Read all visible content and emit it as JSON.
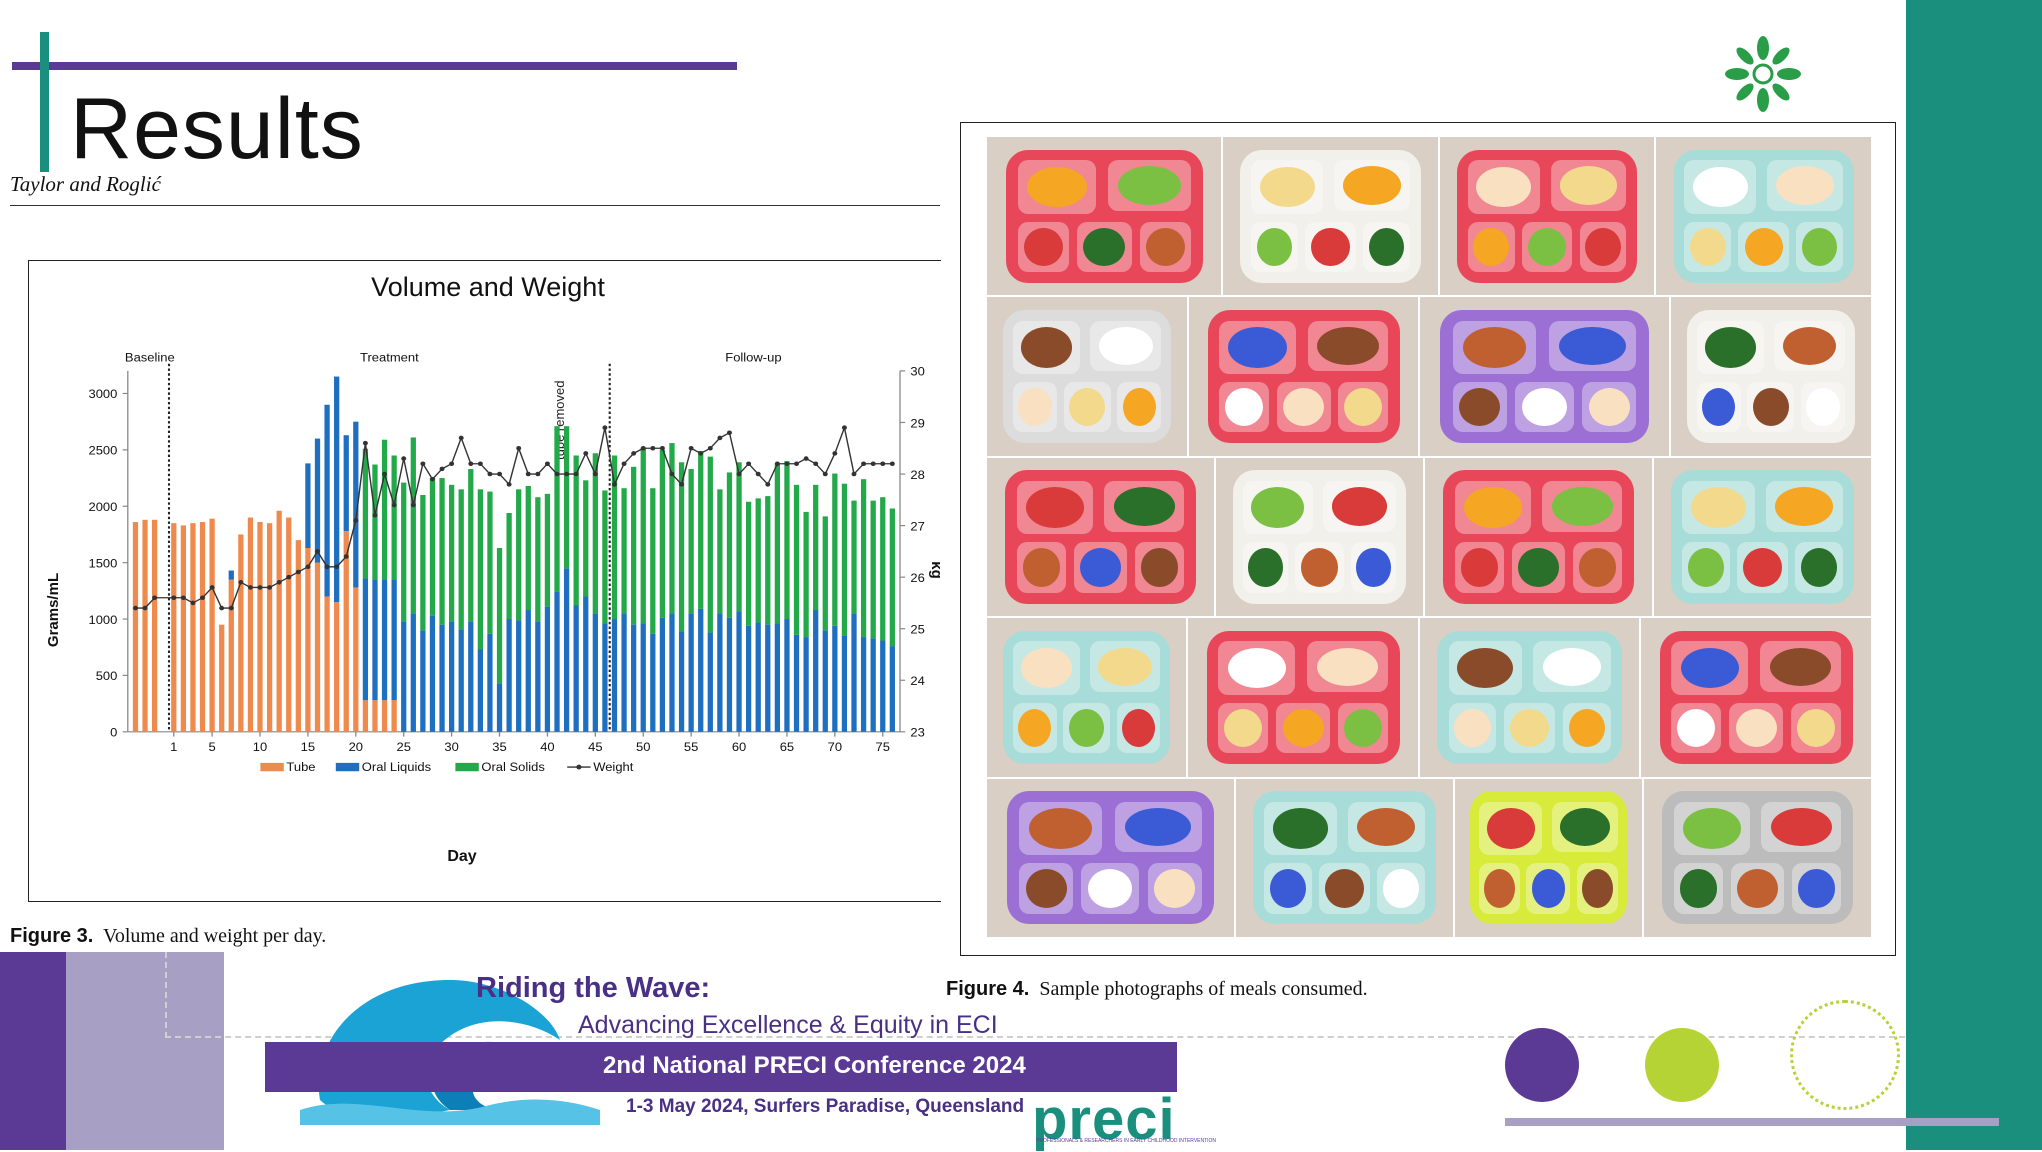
{
  "slide": {
    "title": "Results",
    "authors": "Taylor and Roglić"
  },
  "figure3": {
    "caption_label": "Figure 3.",
    "caption_text": "Volume and weight per day."
  },
  "figure4": {
    "caption_label": "Figure 4.",
    "caption_text": "Sample photographs of meals consumed."
  },
  "conference": {
    "title_line1": "Riding the Wave:",
    "title_line2": "Advancing Excellence & Equity in ECI",
    "name": "2nd National PRECI Conference 2024",
    "date": "1-3 May 2024, Surfers Paradise, Queensland",
    "logo": "preci",
    "logo_sub": "PROFESSIONALS & RESEARCHERS IN EARLY CHILDHOOD INTERVENTION"
  },
  "icons": [
    "flower-logo-icon",
    "wave-icon"
  ],
  "colors": {
    "purple": "#5b3a96",
    "teal": "#1a8f7d",
    "lime": "#b5d334",
    "lavender": "#a7a0c4",
    "tube": "#ee8a4e",
    "oral_liquids": "#1f6fc1",
    "oral_solids": "#23a84a",
    "weight": "#333333"
  },
  "chart_data": {
    "type": "bar",
    "title": "Volume and Weight",
    "xlabel": "Day",
    "ylabel": "Grams/mL",
    "y2label": "kg",
    "ylim": [
      0,
      3200
    ],
    "y2lim": [
      23,
      30
    ],
    "yticks": [
      0,
      500,
      1000,
      1500,
      2000,
      2500,
      3000
    ],
    "y2ticks": [
      23,
      24,
      25,
      26,
      27,
      28,
      29,
      30
    ],
    "xticks": [
      1,
      5,
      10,
      15,
      20,
      25,
      30,
      35,
      40,
      45,
      50,
      55,
      60,
      65,
      70,
      75
    ],
    "phases": [
      {
        "label": "Baseline",
        "start": -3,
        "end": 0
      },
      {
        "label": "Treatment",
        "start": 1,
        "end": 46
      },
      {
        "label": "Follow-up",
        "start": 47,
        "end": 76
      }
    ],
    "annotation": "tube removed",
    "legend": [
      "Tube",
      "Oral Liquids",
      "Oral Solids",
      "Weight"
    ],
    "legend_position": "bottom",
    "days": [
      -3,
      -2,
      -1,
      1,
      2,
      3,
      4,
      5,
      6,
      7,
      8,
      9,
      10,
      11,
      12,
      13,
      14,
      15,
      16,
      17,
      18,
      19,
      20,
      21,
      22,
      23,
      24,
      25,
      26,
      27,
      28,
      29,
      30,
      31,
      32,
      33,
      34,
      35,
      36,
      37,
      38,
      39,
      40,
      41,
      42,
      43,
      44,
      45,
      46,
      47,
      48,
      49,
      50,
      51,
      52,
      53,
      54,
      55,
      56,
      57,
      58,
      59,
      60,
      61,
      62,
      63,
      64,
      65,
      66,
      67,
      68,
      69,
      70,
      71,
      72,
      73,
      74,
      75,
      76
    ],
    "series": [
      {
        "name": "Tube",
        "values": [
          1860,
          1880,
          1880,
          1850,
          1830,
          1850,
          1860,
          1890,
          950,
          1350,
          1750,
          1900,
          1860,
          1850,
          1960,
          1900,
          1700,
          1630,
          1500,
          1200,
          1150,
          1780,
          1280,
          280,
          280,
          280,
          280,
          0,
          0,
          0,
          0,
          0,
          0,
          0,
          0,
          0,
          0,
          0,
          0,
          0,
          0,
          0,
          0,
          0,
          0,
          0,
          0,
          0,
          0,
          0,
          0,
          0,
          0,
          0,
          0,
          0,
          0,
          0,
          0,
          0,
          0,
          0,
          0,
          0,
          0,
          0,
          0,
          0,
          0,
          0,
          0,
          0,
          0,
          0,
          0,
          0,
          0,
          0,
          0
        ]
      },
      {
        "name": "Oral Liquids",
        "values": [
          0,
          0,
          0,
          0,
          0,
          0,
          0,
          0,
          0,
          80,
          0,
          0,
          0,
          0,
          0,
          0,
          0,
          750,
          1100,
          1700,
          2000,
          850,
          1470,
          1080,
          1070,
          1070,
          1070,
          980,
          1050,
          900,
          1030,
          950,
          980,
          910,
          980,
          730,
          870,
          430,
          1000,
          990,
          1080,
          980,
          1110,
          1240,
          1450,
          1120,
          1200,
          1050,
          960,
          1000,
          1050,
          950,
          960,
          870,
          1010,
          1050,
          890,
          1050,
          1090,
          880,
          1050,
          1010,
          1070,
          940,
          970,
          950,
          960,
          1000,
          860,
          840,
          1080,
          900,
          940,
          850,
          1050,
          840,
          830,
          810,
          760
        ]
      },
      {
        "name": "Oral Solids",
        "values": [
          0,
          0,
          0,
          0,
          0,
          0,
          0,
          0,
          0,
          0,
          0,
          0,
          0,
          0,
          0,
          0,
          0,
          0,
          0,
          0,
          0,
          0,
          0,
          1150,
          1020,
          1240,
          1100,
          1230,
          1560,
          1200,
          1220,
          1300,
          1210,
          1240,
          1350,
          1420,
          1260,
          1200,
          940,
          1160,
          1100,
          1100,
          1000,
          1470,
          1260,
          1330,
          1030,
          1420,
          1180,
          1450,
          1110,
          1400,
          1560,
          1290,
          1490,
          1510,
          1500,
          1280,
          1400,
          1560,
          1100,
          1290,
          1320,
          1100,
          1100,
          1140,
          1420,
          1400,
          1330,
          1110,
          1110,
          1010,
          1350,
          1350,
          1000,
          1400,
          1220,
          1270,
          1220
        ]
      },
      {
        "name": "Weight",
        "values": [
          25.4,
          25.4,
          25.6,
          25.6,
          25.6,
          25.5,
          25.6,
          25.8,
          25.4,
          25.4,
          25.9,
          25.8,
          25.8,
          25.8,
          25.9,
          26.0,
          26.1,
          26.2,
          26.5,
          26.2,
          26.2,
          26.4,
          27.1,
          28.6,
          27.2,
          28.0,
          27.4,
          28.3,
          27.4,
          28.2,
          27.9,
          28.1,
          28.2,
          28.7,
          28.2,
          28.2,
          28.0,
          28.0,
          27.8,
          28.5,
          28.0,
          28.0,
          28.2,
          28.0,
          28.0,
          28.0,
          28.4,
          28.0,
          28.9,
          27.8,
          28.2,
          28.4,
          28.5,
          28.5,
          28.5,
          28.0,
          27.8,
          28.5,
          28.4,
          28.5,
          28.7,
          28.8,
          28.0,
          28.2,
          28.0,
          27.8,
          28.2,
          28.2,
          28.2,
          28.3,
          28.2,
          28.0,
          28.4,
          28.9,
          28.0,
          28.2,
          28.2,
          28.2,
          28.2
        ]
      }
    ]
  }
}
